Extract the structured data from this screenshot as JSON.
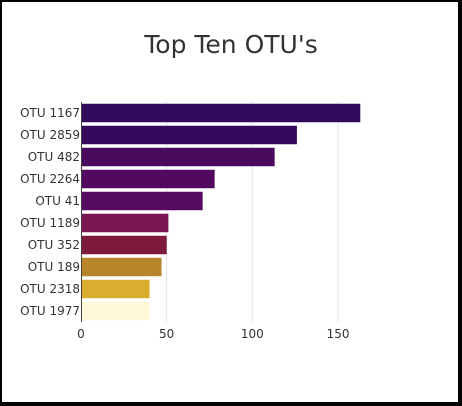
{
  "chart_data": {
    "type": "bar",
    "orientation": "horizontal",
    "title": "Top Ten OTU's",
    "xlabel": "",
    "ylabel": "",
    "categories": [
      "OTU 1167",
      "OTU 2859",
      "OTU 482",
      "OTU 2264",
      "OTU 41",
      "OTU 1189",
      "OTU 352",
      "OTU 189",
      "OTU 2318",
      "OTU 1977"
    ],
    "values": [
      163,
      126,
      113,
      78,
      71,
      51,
      50,
      47,
      40,
      40
    ],
    "colors": [
      "#300A5B",
      "#35095C",
      "#4A0A5E",
      "#520A60",
      "#570A62",
      "#7A1650",
      "#7E1A3E",
      "#B8862A",
      "#D9AE2E",
      "#FFF8D6"
    ],
    "xlim": [
      0,
      185
    ],
    "xticks": [
      0,
      50,
      100,
      150
    ],
    "grid": true,
    "legend": "none"
  }
}
